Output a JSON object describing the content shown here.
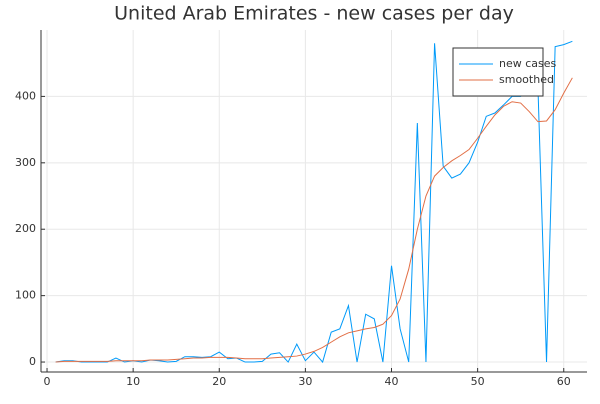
{
  "chart_data": {
    "type": "line",
    "title": "United Arab Emirates - new cases per day",
    "x": [
      1,
      2,
      3,
      4,
      5,
      6,
      7,
      8,
      9,
      10,
      11,
      12,
      13,
      14,
      15,
      16,
      17,
      18,
      19,
      20,
      21,
      22,
      23,
      24,
      25,
      26,
      27,
      28,
      29,
      30,
      31,
      32,
      33,
      34,
      35,
      36,
      37,
      38,
      39,
      40,
      41,
      42,
      43,
      44,
      45,
      46,
      47,
      48,
      49,
      50,
      51,
      52,
      53,
      54,
      55,
      56,
      57,
      58,
      59,
      60,
      61
    ],
    "series": [
      {
        "name": "new cases",
        "color": "#009af9",
        "values": [
          0,
          2,
          2,
          0,
          0,
          0,
          0,
          6,
          0,
          2,
          0,
          3,
          2,
          0,
          1,
          8,
          8,
          7,
          8,
          15,
          5,
          6,
          0,
          0,
          1,
          12,
          14,
          0,
          27,
          2,
          15,
          0,
          45,
          50,
          85,
          0,
          72,
          65,
          0,
          145,
          50,
          0,
          360,
          0,
          480,
          295,
          277,
          283,
          300,
          331,
          370,
          375,
          387,
          400,
          400,
          410,
          415,
          0,
          475,
          478,
          483
        ]
      },
      {
        "name": "smoothed",
        "color": "#e26f46",
        "values": [
          0,
          1,
          1,
          1,
          1,
          1,
          1,
          2,
          2,
          2,
          2,
          3,
          3,
          3,
          4,
          5,
          6,
          6,
          7,
          7,
          7,
          6,
          5,
          5,
          5,
          6,
          7,
          8,
          9,
          12,
          16,
          22,
          30,
          38,
          44,
          47,
          50,
          52,
          57,
          70,
          95,
          140,
          200,
          250,
          280,
          293,
          303,
          311,
          320,
          337,
          355,
          372,
          385,
          392,
          390,
          377,
          362,
          363,
          380,
          405,
          428
        ]
      }
    ],
    "xlim": [
      -0.7,
      62.7
    ],
    "ylim": [
      -15,
      500
    ],
    "xticks": [
      0,
      10,
      20,
      30,
      40,
      50,
      60
    ],
    "yticks": [
      0,
      100,
      200,
      300,
      400
    ],
    "grid": true,
    "legend": "top-right"
  }
}
